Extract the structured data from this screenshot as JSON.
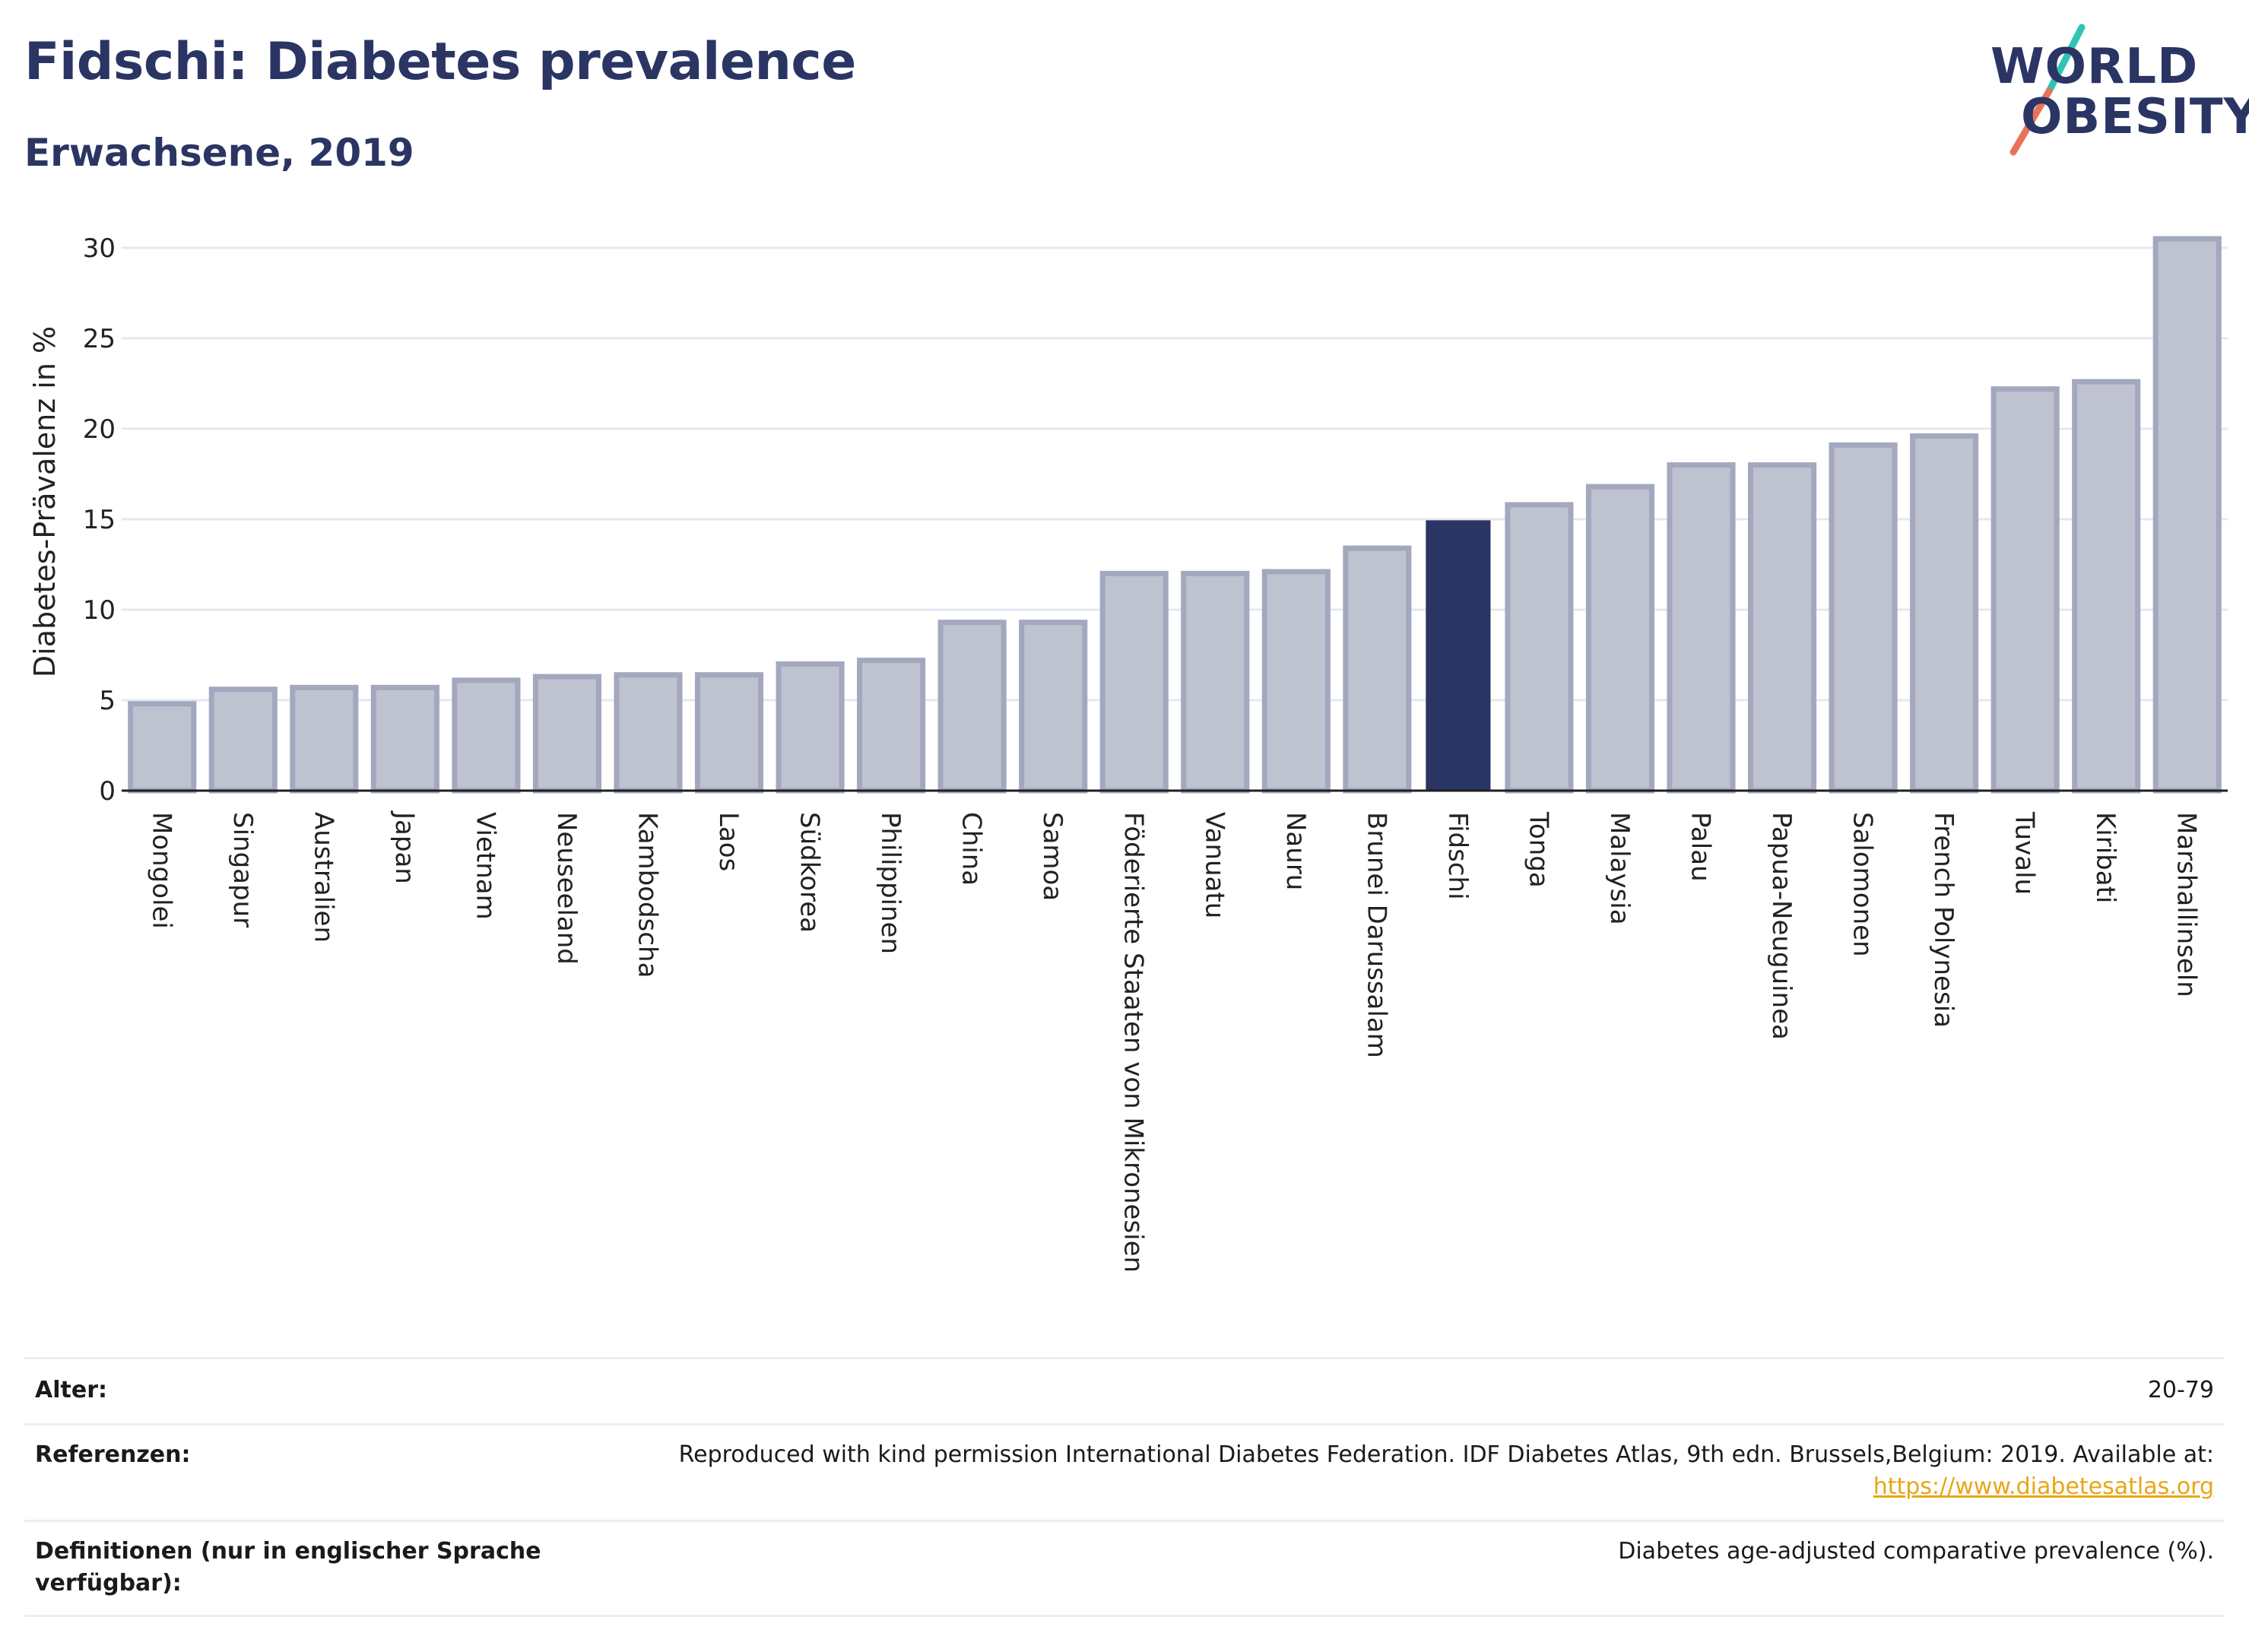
{
  "header": {
    "title": "Fidschi: Diabetes prevalence",
    "subtitle": "Erwachsene, 2019"
  },
  "logo": {
    "line1": "WORLD",
    "line2": "OBESITY",
    "accent_colors": [
      "#2ec4b6",
      "#e8735a"
    ]
  },
  "colors": {
    "bar_default": "#bfc2cf",
    "bar_border": "#a3a8bf",
    "bar_highlight": "#2b3564",
    "gridline": "#e6e8ef",
    "axis": "#1f1f1f",
    "link": "#e8a617"
  },
  "chart_data": {
    "type": "bar",
    "title": "Fidschi: Diabetes prevalence",
    "subtitle": "Erwachsene, 2019",
    "xlabel": "",
    "ylabel": "Diabetes-Prävalenz in %",
    "ylim": [
      0,
      30
    ],
    "yticks": [
      0,
      5,
      10,
      15,
      20,
      25,
      30
    ],
    "grid": true,
    "highlight": "Fidschi",
    "categories": [
      "Mongolei",
      "Singapur",
      "Australien",
      "Japan",
      "Vietnam",
      "Neuseeland",
      "Kambodscha",
      "Laos",
      "Südkorea",
      "Philippinen",
      "China",
      "Samoa",
      "Föderierte Staaten von Mikronesien",
      "Vanuatu",
      "Nauru",
      "Brunei Darussalam",
      "Fidschi",
      "Tonga",
      "Malaysia",
      "Palau",
      "Papua-Neuguinea",
      "Salomonen",
      "French Polynesia",
      "Tuvalu",
      "Kiribati",
      "Marshallinseln"
    ],
    "values": [
      4.8,
      5.6,
      5.7,
      5.7,
      6.1,
      6.3,
      6.4,
      6.4,
      7.0,
      7.2,
      9.3,
      9.3,
      12.0,
      12.0,
      12.1,
      13.4,
      14.9,
      15.8,
      16.8,
      18.0,
      18.0,
      19.1,
      19.6,
      22.2,
      22.6,
      30.5
    ]
  },
  "info": {
    "rows": [
      {
        "label": "Alter:",
        "value": "20-79"
      },
      {
        "label": "Referenzen:",
        "value": "Reproduced with kind permission International Diabetes Federation. IDF Diabetes Atlas, 9th edn. Brussels,Belgium: 2019. Available at:",
        "link": "https://www.diabetesatlas.org"
      },
      {
        "label": "Definitionen (nur in englischer Sprache verfügbar):",
        "value": "Diabetes age-adjusted comparative prevalence (%)."
      }
    ]
  }
}
